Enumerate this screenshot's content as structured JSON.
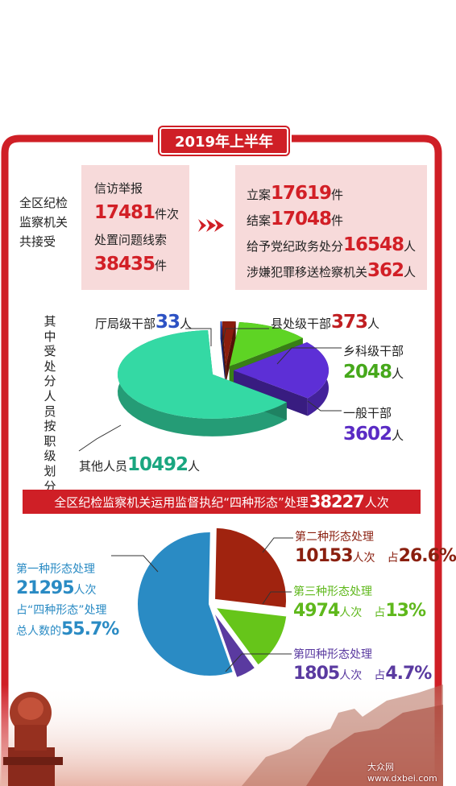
{
  "colors": {
    "brand_red": "#cf1f26",
    "panel_pink": "#f7dada",
    "pie1_blue": "#2a8bc4",
    "pie1_darkred": "#a0230f",
    "pie1_green": "#66c51a",
    "pie1_purple": "#5a3aa0",
    "pie2_teal": "#34d9a4",
    "pie2_purple": "#5d2fd6",
    "pie2_green": "#5ed424",
    "pie2_darkred": "#8b1d0e",
    "pie2_blue": "#2244c0"
  },
  "header": {
    "year_label": "2019年上半年"
  },
  "intro": {
    "text": "全区纪检监察机关共接受"
  },
  "left_panel": {
    "item1_label": "信访举报",
    "item1_value": "17481",
    "item1_unit": "件次",
    "item2_label": "处置问题线索",
    "item2_value": "38435",
    "item2_unit": "件"
  },
  "right_panel": {
    "r1_label": "立案",
    "r1_value": "17619",
    "r1_unit": "件",
    "r2_label": "结案",
    "r2_value": "17048",
    "r2_unit": "件",
    "r3_label": "给予党纪政务处分",
    "r3_value": "16548",
    "r3_unit": "人",
    "r4_label": "涉嫌犯罪移送检察机关",
    "r4_value": "362",
    "r4_unit": "人"
  },
  "section2": {
    "vertical_title": "其中受处分人员按职级划分"
  },
  "section3": {
    "banner_prefix": "全区纪检监察机关运用监督执纪“四种形态”处理",
    "banner_value": "38227",
    "banner_suffix": "人次",
    "extra_label": "占“四种形态”处理",
    "extra_label2": "总人数的",
    "extra_pct": "55.7%",
    "unit": "人次",
    "share_prefix": "占"
  },
  "chart_data": [
    {
      "type": "pie",
      "title": "",
      "unit": "人",
      "slices": [
        {
          "label": "厅局级干部",
          "value": 33,
          "color": "#2244c0"
        },
        {
          "label": "县处级干部",
          "value": 373,
          "color": "#8b1d0e"
        },
        {
          "label": "乡科级干部",
          "value": 2048,
          "color": "#5ed424"
        },
        {
          "label": "一般干部",
          "value": 3602,
          "color": "#5d2fd6"
        },
        {
          "label": "其他人员",
          "value": 10492,
          "color": "#34d9a4"
        }
      ]
    },
    {
      "type": "pie",
      "title": "",
      "unit": "人次",
      "slices": [
        {
          "label": "第一种形态处理",
          "value": 21295,
          "percent": "55.7%",
          "color": "#2a8bc4"
        },
        {
          "label": "第二种形态处理",
          "value": 10153,
          "percent": "26.6%",
          "color": "#a0230f"
        },
        {
          "label": "第三种形态处理",
          "value": 4974,
          "percent": "13%",
          "color": "#66c51a"
        },
        {
          "label": "第四种形态处理",
          "value": 1805,
          "percent": "4.7%",
          "color": "#5a3aa0"
        }
      ]
    }
  ],
  "watermark": "大众网 www.dxbei.com"
}
